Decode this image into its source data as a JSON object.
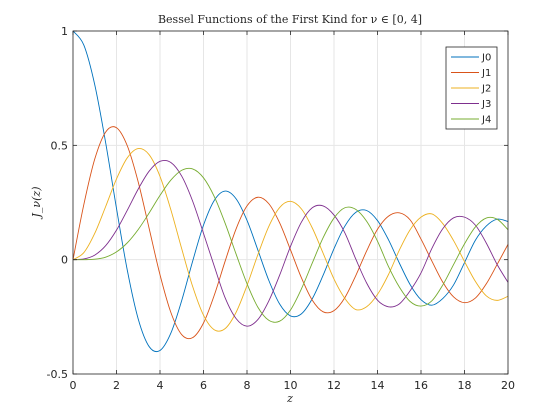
{
  "chart_data": {
    "type": "line",
    "title": "Bessel Functions of the First Kind for ν ∈ [0, 4]",
    "xlabel": "z",
    "ylabel": "J_ν(z)",
    "xlim": [
      0,
      20
    ],
    "ylim": [
      -0.5,
      1
    ],
    "xticks": [
      "0",
      "2",
      "4",
      "6",
      "8",
      "10",
      "12",
      "14",
      "16",
      "18",
      "20"
    ],
    "yticks": [
      "-0.5",
      "0",
      "0.5",
      "1"
    ],
    "grid": true,
    "legend_position": "top-right",
    "x": [
      0,
      0.5,
      1,
      1.5,
      2,
      2.5,
      3,
      3.5,
      4,
      4.5,
      5,
      5.5,
      6,
      6.5,
      7,
      7.5,
      8,
      8.5,
      9,
      9.5,
      10,
      10.5,
      11,
      11.5,
      12,
      12.5,
      13,
      13.5,
      14,
      14.5,
      15,
      15.5,
      16,
      16.5,
      17,
      17.5,
      18,
      18.5,
      19,
      19.5,
      20
    ],
    "series": [
      {
        "name": "J0",
        "color": "#0072bd",
        "values": [
          1.0,
          0.938,
          0.765,
          0.512,
          0.224,
          -0.048,
          -0.26,
          -0.38,
          -0.397,
          -0.321,
          -0.178,
          -0.007,
          0.151,
          0.26,
          0.3,
          0.266,
          0.172,
          0.042,
          -0.09,
          -0.194,
          -0.246,
          -0.237,
          -0.171,
          -0.068,
          0.048,
          0.147,
          0.207,
          0.215,
          0.171,
          0.088,
          -0.014,
          -0.109,
          -0.175,
          -0.199,
          -0.17,
          -0.11,
          -0.013,
          0.085,
          0.147,
          0.177,
          0.167
        ]
      },
      {
        "name": "J1",
        "color": "#d95319",
        "values": [
          0.0,
          0.242,
          0.44,
          0.558,
          0.577,
          0.497,
          0.339,
          0.137,
          -0.066,
          -0.231,
          -0.328,
          -0.341,
          -0.277,
          -0.154,
          -0.005,
          0.135,
          0.235,
          0.273,
          0.245,
          0.161,
          0.043,
          -0.079,
          -0.177,
          -0.228,
          -0.223,
          -0.166,
          -0.07,
          0.038,
          0.133,
          0.19,
          0.205,
          0.174,
          0.09,
          -0.006,
          -0.098,
          -0.163,
          -0.188,
          -0.168,
          -0.106,
          -0.021,
          0.067
        ]
      },
      {
        "name": "J2",
        "color": "#edb120",
        "values": [
          0.0,
          0.031,
          0.115,
          0.232,
          0.353,
          0.446,
          0.486,
          0.459,
          0.364,
          0.218,
          0.047,
          -0.117,
          -0.243,
          -0.307,
          -0.301,
          -0.23,
          -0.113,
          0.022,
          0.145,
          0.228,
          0.255,
          0.222,
          0.139,
          0.028,
          -0.085,
          -0.17,
          -0.218,
          -0.206,
          -0.152,
          -0.066,
          0.041,
          0.131,
          0.186,
          0.2,
          0.158,
          0.083,
          -0.008,
          -0.095,
          -0.158,
          -0.178,
          -0.16
        ]
      },
      {
        "name": "J3",
        "color": "#7e2f8e",
        "values": [
          0.0,
          0.003,
          0.02,
          0.061,
          0.129,
          0.217,
          0.309,
          0.387,
          0.43,
          0.425,
          0.365,
          0.256,
          0.115,
          -0.03,
          -0.168,
          -0.258,
          -0.291,
          -0.262,
          -0.181,
          -0.068,
          0.058,
          0.164,
          0.227,
          0.235,
          0.195,
          0.117,
          0.003,
          -0.102,
          -0.177,
          -0.206,
          -0.194,
          -0.136,
          -0.058,
          0.049,
          0.135,
          0.183,
          0.186,
          0.151,
          0.073,
          -0.021,
          -0.099
        ]
      },
      {
        "name": "J4",
        "color": "#77ac30",
        "values": [
          0.0,
          0.0,
          0.002,
          0.011,
          0.034,
          0.074,
          0.132,
          0.204,
          0.281,
          0.348,
          0.391,
          0.397,
          0.358,
          0.275,
          0.158,
          0.024,
          -0.105,
          -0.208,
          -0.265,
          -0.269,
          -0.22,
          -0.128,
          -0.015,
          0.096,
          0.182,
          0.227,
          0.22,
          0.168,
          0.081,
          -0.029,
          -0.119,
          -0.183,
          -0.203,
          -0.18,
          -0.111,
          -0.021,
          0.069,
          0.143,
          0.182,
          0.177,
          0.131
        ]
      }
    ]
  }
}
